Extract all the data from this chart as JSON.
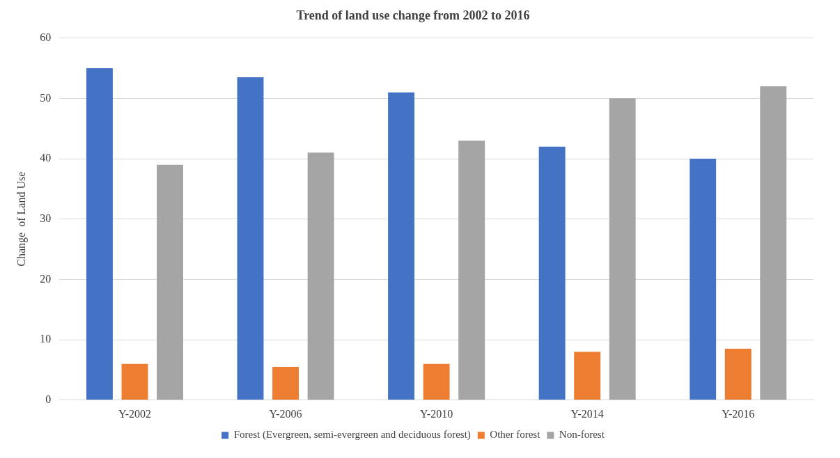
{
  "chart_data": {
    "type": "bar",
    "title": "Trend of land use change from 2002 to 2016",
    "ylabel": "Change  of Land Use",
    "categories": [
      "Y-2002",
      "Y-2006",
      "Y-2010",
      "Y-2014",
      "Y-2016"
    ],
    "series": [
      {
        "name": "Forest (Evergreen, semi-evergreen and deciduous forest)",
        "color": "#4472c4",
        "values": [
          55,
          53.5,
          51,
          42,
          40
        ]
      },
      {
        "name": "Other forest",
        "color": "#ed7d31",
        "values": [
          6,
          5.5,
          6,
          8,
          8.5
        ]
      },
      {
        "name": "Non-forest",
        "color": "#a5a5a5",
        "values": [
          39,
          41,
          43,
          50,
          52
        ]
      }
    ],
    "ylim": [
      0,
      60
    ],
    "yticks": [
      0,
      10,
      20,
      30,
      40,
      50,
      60
    ],
    "grid": "y",
    "legend": "bottom"
  }
}
